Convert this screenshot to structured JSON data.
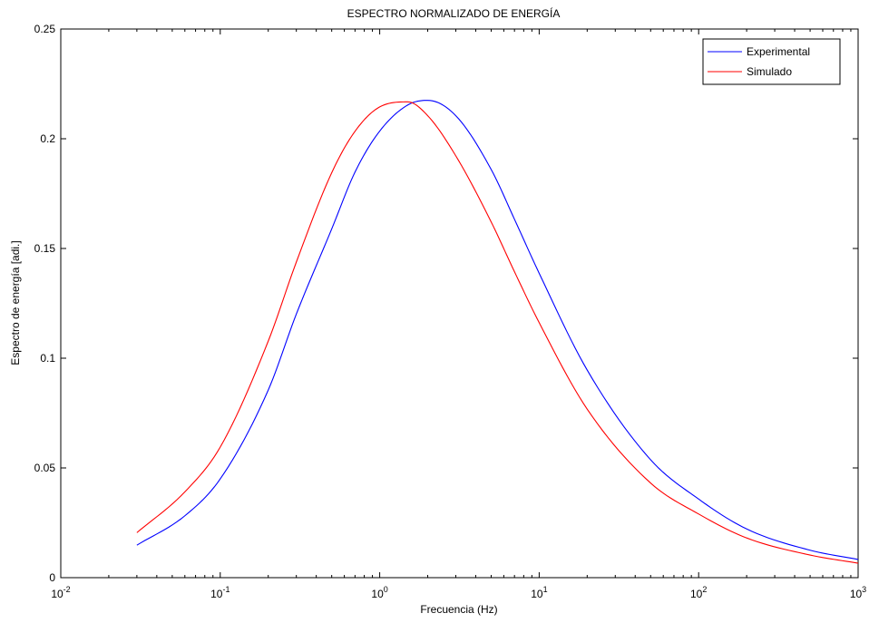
{
  "chart_data": {
    "type": "line",
    "title": "ESPECTRO NORMALIZADO DE ENERGÍA",
    "xlabel": "Frecuencia (Hz)",
    "ylabel": "Espectro de energía [adi.]",
    "x_scale": "log",
    "xlim": [
      0.01,
      1000
    ],
    "ylim": [
      0,
      0.25
    ],
    "x_ticks": [
      {
        "base": "10",
        "exp": "-2",
        "value": 0.01
      },
      {
        "base": "10",
        "exp": "-1",
        "value": 0.1
      },
      {
        "base": "10",
        "exp": "0",
        "value": 1
      },
      {
        "base": "10",
        "exp": "1",
        "value": 10
      },
      {
        "base": "10",
        "exp": "2",
        "value": 100
      },
      {
        "base": "10",
        "exp": "3",
        "value": 1000
      }
    ],
    "y_ticks": [
      {
        "label": "0",
        "value": 0
      },
      {
        "label": "0.05",
        "value": 0.05
      },
      {
        "label": "0.1",
        "value": 0.1
      },
      {
        "label": "0.15",
        "value": 0.15
      },
      {
        "label": "0.2",
        "value": 0.2
      },
      {
        "label": "0.25",
        "value": 0.25
      }
    ],
    "grid": false,
    "legend_position": "top-right",
    "series": [
      {
        "name": "Experimental",
        "color": "#0000ff",
        "x": [
          0.03,
          0.06,
          0.1,
          0.2,
          0.3,
          0.5,
          0.7,
          1,
          1.5,
          2,
          3,
          5,
          7,
          10,
          20,
          50,
          100,
          200,
          500,
          1000
        ],
        "y": [
          0.0148,
          0.0282,
          0.045,
          0.0855,
          0.1201,
          0.1589,
          0.1848,
          0.2035,
          0.2154,
          0.2175,
          0.2105,
          0.186,
          0.1633,
          0.1387,
          0.0946,
          0.0537,
          0.0358,
          0.0222,
          0.0125,
          0.0083
        ]
      },
      {
        "name": "Simulado",
        "color": "#ff0000",
        "x": [
          0.03,
          0.06,
          0.1,
          0.2,
          0.3,
          0.5,
          0.7,
          1,
          1.5,
          2,
          3,
          5,
          7,
          10,
          20,
          50,
          100,
          200,
          500,
          1000
        ],
        "y": [
          0.0205,
          0.0391,
          0.0595,
          0.1078,
          0.1438,
          0.1845,
          0.2034,
          0.2145,
          0.2168,
          0.2105,
          0.1922,
          0.1621,
          0.1394,
          0.1162,
          0.0768,
          0.0431,
          0.029,
          0.0181,
          0.0103,
          0.0066
        ]
      }
    ]
  }
}
